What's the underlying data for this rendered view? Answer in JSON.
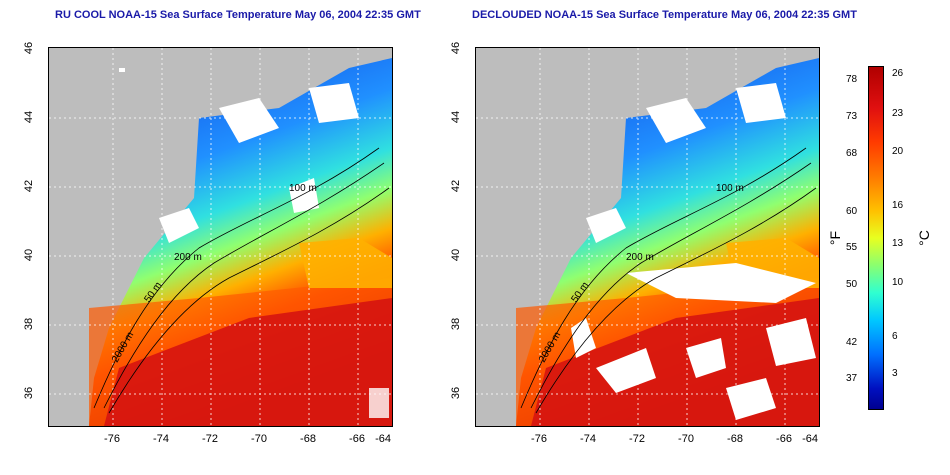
{
  "left_panel": {
    "title": "RU COOL NOAA-15 Sea Surface Temperature May 06, 2004 22:35 GMT"
  },
  "right_panel": {
    "title": "DECLOUDED NOAA-15 Sea Surface Temperature May 06, 2004 22:35 GMT"
  },
  "axes": {
    "lat_ticks": [
      "36",
      "38",
      "40",
      "42",
      "44",
      "46"
    ],
    "lon_ticks": [
      "-76",
      "-74",
      "-72",
      "-70",
      "-68",
      "-66",
      "-64"
    ]
  },
  "contours": {
    "labels": [
      "50 m",
      "200 m",
      "2000 m",
      "100 m"
    ]
  },
  "colorbar": {
    "fahrenheit_label": "°F",
    "celsius_label": "°C",
    "fahrenheit": [
      "78",
      "73",
      "68",
      "60",
      "55",
      "50",
      "42",
      "37"
    ],
    "celsius": [
      "26",
      "23",
      "20",
      "16",
      "13",
      "10",
      "6",
      "3"
    ]
  },
  "colors": {
    "title": "#1a1aa8",
    "land": "#bdbdbd",
    "cloud": "#ffffff"
  }
}
